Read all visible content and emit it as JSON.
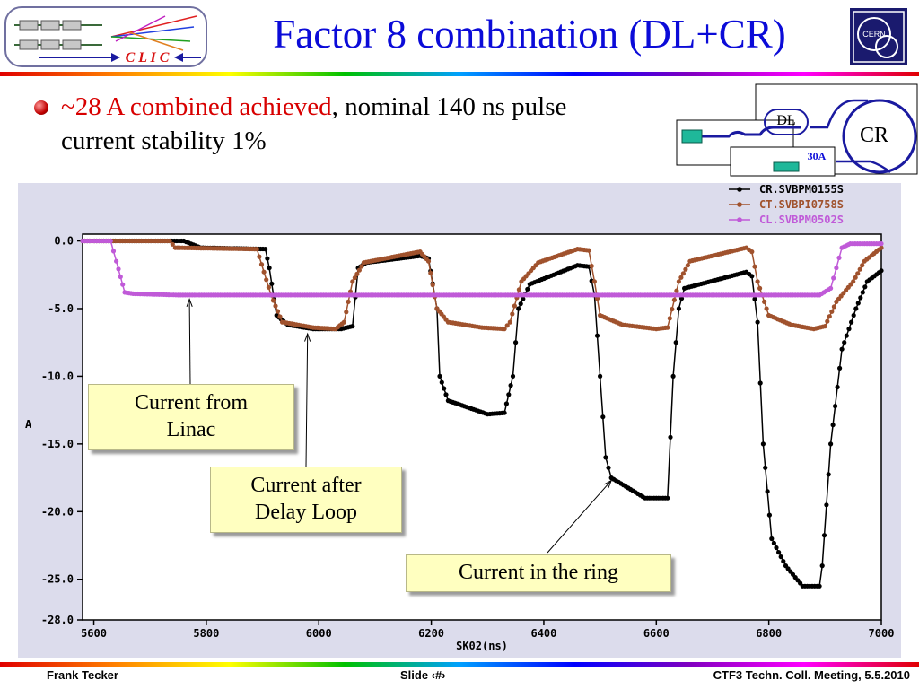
{
  "slide": {
    "title": "Factor 8 combination (DL+CR)",
    "logo_text": "C L I C",
    "cern_logo_text": "CERN",
    "bullet_highlight": "~28 A combined achieved",
    "bullet_rest": ", nominal 140 ns pulse",
    "bullet_line2": "current stability 1%"
  },
  "diagram": {
    "dl_label": "DL",
    "cr_label": "CR",
    "current_label": "30A",
    "colors": {
      "line": "#1a1aa0",
      "box": "#1fb89a",
      "label": "#0b0bd8"
    }
  },
  "callouts": {
    "linac": [
      "Current from",
      "Linac"
    ],
    "delay_loop": [
      "Current after",
      "Delay Loop"
    ],
    "ring": "Current in the ring"
  },
  "footer": {
    "author": "Frank Tecker",
    "slide": "Slide ‹#›",
    "meeting": "CTF3 Techn. Coll. Meeting, 5.5.2010"
  },
  "chart_data": {
    "type": "line",
    "xlabel": "SK02(ns)",
    "ylabel": "A",
    "xlim": [
      5580,
      7000
    ],
    "ylim": [
      -28,
      0.5
    ],
    "x_ticks": [
      5600,
      5800,
      6000,
      6200,
      6400,
      6600,
      6800,
      7000
    ],
    "y_ticks": [
      0,
      -5,
      -10,
      -15,
      -20,
      -25,
      -28
    ],
    "x_tick_labels": [
      "5600",
      "5800",
      "6000",
      "6200",
      "6400",
      "6600",
      "6800",
      "7000"
    ],
    "y_tick_labels": [
      "0.0",
      "-5.0",
      "-10.0",
      "-15.0",
      "-20.0",
      "-25.0",
      "-28.0"
    ],
    "legend_position": "top-right",
    "grid": false,
    "series": [
      {
        "name": "CR.SVBPM0155S",
        "color": "#000000",
        "points": [
          [
            5580,
            0
          ],
          [
            5760,
            0
          ],
          [
            5790,
            -0.5
          ],
          [
            5905,
            -0.6
          ],
          [
            5912,
            -2
          ],
          [
            5925,
            -5.5
          ],
          [
            5945,
            -6.2
          ],
          [
            5990,
            -6.5
          ],
          [
            6040,
            -6.5
          ],
          [
            6060,
            -6.3
          ],
          [
            6070,
            -2
          ],
          [
            6085,
            -1.6
          ],
          [
            6180,
            -1.1
          ],
          [
            6195,
            -1.3
          ],
          [
            6210,
            -5
          ],
          [
            6215,
            -10
          ],
          [
            6230,
            -11.8
          ],
          [
            6300,
            -12.8
          ],
          [
            6330,
            -12.7
          ],
          [
            6345,
            -10
          ],
          [
            6355,
            -5
          ],
          [
            6375,
            -3.2
          ],
          [
            6460,
            -1.8
          ],
          [
            6480,
            -1.9
          ],
          [
            6490,
            -4
          ],
          [
            6500,
            -10
          ],
          [
            6510,
            -16
          ],
          [
            6520,
            -17.5
          ],
          [
            6580,
            -19
          ],
          [
            6620,
            -19
          ],
          [
            6630,
            -10
          ],
          [
            6640,
            -5
          ],
          [
            6650,
            -3.5
          ],
          [
            6760,
            -2.3
          ],
          [
            6770,
            -2.6
          ],
          [
            6780,
            -6
          ],
          [
            6790,
            -15
          ],
          [
            6805,
            -22
          ],
          [
            6830,
            -24
          ],
          [
            6860,
            -25.5
          ],
          [
            6890,
            -25.5
          ],
          [
            6895,
            -24
          ],
          [
            6910,
            -15
          ],
          [
            6930,
            -8
          ],
          [
            6955,
            -5
          ],
          [
            6975,
            -3
          ],
          [
            7000,
            -2.2
          ]
        ]
      },
      {
        "name": "CT.SVBPI0758S",
        "color": "#a0522d",
        "points": [
          [
            5580,
            0
          ],
          [
            5735,
            0
          ],
          [
            5745,
            -0.5
          ],
          [
            5890,
            -0.6
          ],
          [
            5915,
            -4
          ],
          [
            5935,
            -6
          ],
          [
            5990,
            -6.4
          ],
          [
            6030,
            -6.5
          ],
          [
            6045,
            -6
          ],
          [
            6060,
            -3
          ],
          [
            6080,
            -1.6
          ],
          [
            6180,
            -0.8
          ],
          [
            6195,
            -1.5
          ],
          [
            6210,
            -5
          ],
          [
            6230,
            -6
          ],
          [
            6290,
            -6.4
          ],
          [
            6330,
            -6.5
          ],
          [
            6340,
            -6
          ],
          [
            6360,
            -3
          ],
          [
            6390,
            -1.6
          ],
          [
            6460,
            -0.6
          ],
          [
            6480,
            -0.7
          ],
          [
            6490,
            -3
          ],
          [
            6500,
            -5.5
          ],
          [
            6540,
            -6.2
          ],
          [
            6600,
            -6.5
          ],
          [
            6620,
            -6.4
          ],
          [
            6640,
            -3
          ],
          [
            6660,
            -1.5
          ],
          [
            6760,
            -0.5
          ],
          [
            6770,
            -0.8
          ],
          [
            6780,
            -3
          ],
          [
            6800,
            -5.5
          ],
          [
            6840,
            -6.2
          ],
          [
            6880,
            -6.5
          ],
          [
            6900,
            -6.3
          ],
          [
            6920,
            -4.5
          ],
          [
            6950,
            -3
          ],
          [
            6970,
            -1.5
          ],
          [
            7000,
            -0.5
          ]
        ]
      },
      {
        "name": "CL.SVBPM0502S",
        "color": "#c05ad8",
        "points": [
          [
            5580,
            0
          ],
          [
            5630,
            0
          ],
          [
            5640,
            -1.5
          ],
          [
            5655,
            -3.8
          ],
          [
            5670,
            -3.9
          ],
          [
            5750,
            -4
          ],
          [
            6000,
            -4
          ],
          [
            6500,
            -4
          ],
          [
            6800,
            -4
          ],
          [
            6890,
            -4
          ],
          [
            6910,
            -3.5
          ],
          [
            6920,
            -2
          ],
          [
            6930,
            -0.5
          ],
          [
            6945,
            -0.2
          ],
          [
            7000,
            -0.2
          ]
        ]
      }
    ]
  }
}
